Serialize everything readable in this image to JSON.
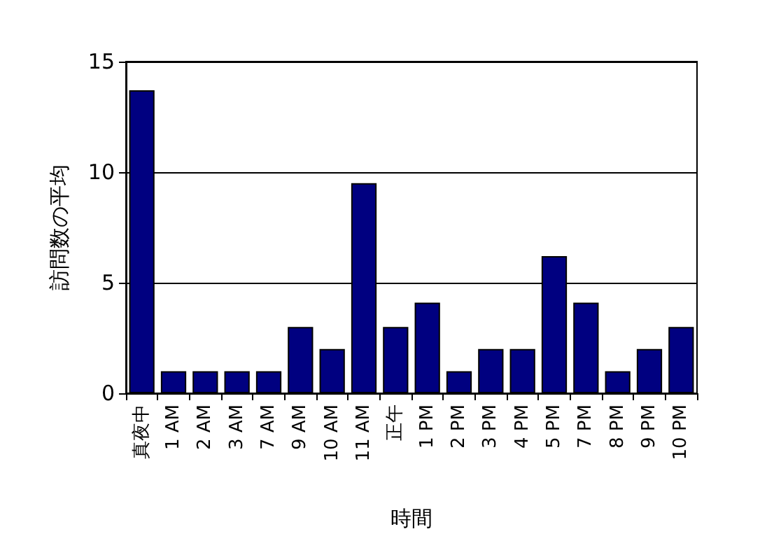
{
  "chart_data": {
    "type": "bar",
    "xlabel": "時間",
    "ylabel": "訪問数の平均",
    "categories": [
      "真夜中",
      "1 AM",
      "2 AM",
      "3 AM",
      "7 AM",
      "9 AM",
      "10 AM",
      "11 AM",
      "正午",
      "1 PM",
      "2 PM",
      "3 PM",
      "4 PM",
      "5 PM",
      "7 PM",
      "8 PM",
      "9 PM",
      "10 PM"
    ],
    "values": [
      13.7,
      1,
      1,
      1,
      1,
      3,
      2,
      9.5,
      3,
      4.1,
      1,
      2,
      2,
      6.2,
      4.1,
      1,
      2,
      3
    ],
    "color": "#000080",
    "ylim": [
      0,
      15
    ],
    "yticks": [
      0,
      5,
      10,
      15
    ],
    "grid": "y"
  }
}
